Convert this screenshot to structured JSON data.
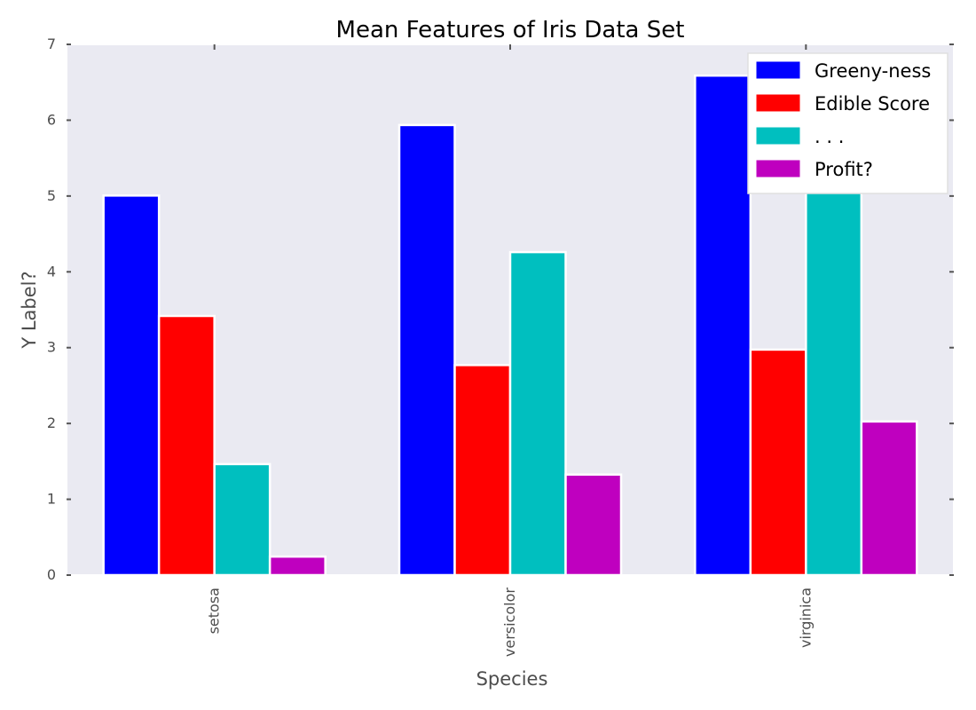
{
  "chart_data": {
    "type": "bar",
    "title": "Mean Features of Iris Data Set",
    "xlabel": "Species",
    "ylabel": "Y Label?",
    "categories": [
      "setosa",
      "versicolor",
      "virginica"
    ],
    "series": [
      {
        "name": "Greeny-ness",
        "color": "#0000ff",
        "values": [
          5.006,
          5.936,
          6.588
        ]
      },
      {
        "name": "Edible Score",
        "color": "#ff0000",
        "values": [
          3.418,
          2.77,
          2.974
        ]
      },
      {
        "name": ". . .",
        "color": "#00bfbf",
        "values": [
          1.464,
          4.26,
          5.552
        ]
      },
      {
        "name": "Profit?",
        "color": "#bf00bf",
        "values": [
          0.244,
          1.326,
          2.026
        ]
      }
    ],
    "ylim": [
      0,
      7
    ],
    "yticks": [
      0,
      1,
      2,
      3,
      4,
      5,
      6,
      7
    ],
    "grid": false,
    "legend_position": "top-right",
    "background_color": "#eaeaf2"
  }
}
